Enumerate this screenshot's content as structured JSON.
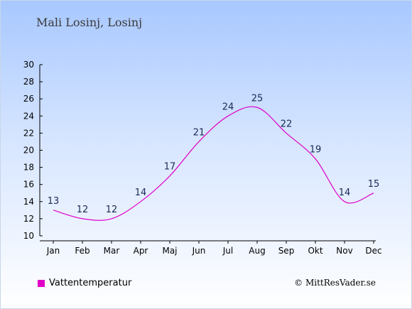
{
  "header": {
    "title": "Mali Losinj, Losinj"
  },
  "legend": {
    "label": "Vattentemperatur"
  },
  "footer": {
    "copyright": "© MittResVader.se"
  },
  "colors": {
    "series": "#e000c8",
    "axis": "#000000",
    "label": "#1a2a55"
  },
  "chart_data": {
    "type": "line",
    "categories": [
      "Jan",
      "Feb",
      "Mar",
      "Apr",
      "Maj",
      "Jun",
      "Jul",
      "Aug",
      "Sep",
      "Okt",
      "Nov",
      "Dec"
    ],
    "series": [
      {
        "name": "Vattentemperatur",
        "values": [
          13,
          12,
          12,
          14,
          17,
          21,
          24,
          25,
          22,
          19,
          14,
          15
        ]
      }
    ],
    "title": "Mali Losinj, Losinj",
    "xlabel": "",
    "ylabel": "",
    "ylim": [
      10,
      30
    ],
    "yticks": [
      10,
      12,
      14,
      16,
      18,
      20,
      22,
      24,
      26,
      28,
      30
    ],
    "grid": false,
    "legend_position": "bottom-left"
  }
}
